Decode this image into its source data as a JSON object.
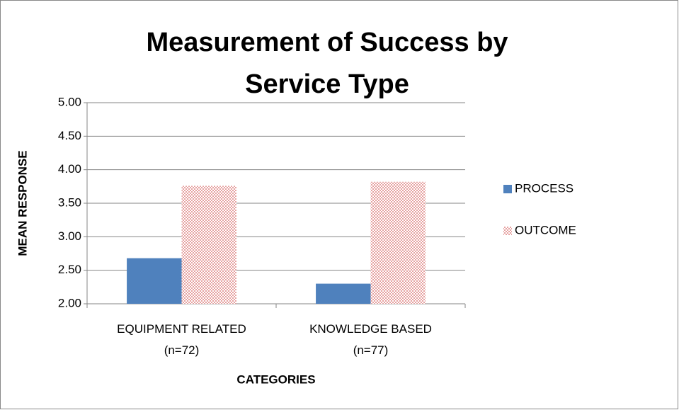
{
  "chart_data": {
    "type": "bar",
    "title": "Measurement of Success by Service Type",
    "x_label": "CATEGORIES",
    "y_label": "MEAN RESPONSE",
    "categories": [
      "EQUIPMENT RELATED (n=72)",
      "KNOWLEDGE BASED (n=77)"
    ],
    "series": [
      {
        "name": "PROCESS",
        "color": "#4f81bd",
        "values": [
          2.68,
          2.3
        ]
      },
      {
        "name": "OUTCOME",
        "color": "#e6a1a0",
        "pattern": "checker",
        "values": [
          3.76,
          3.82
        ]
      }
    ],
    "ylim": [
      2,
      5
    ],
    "yticks": [
      {
        "value": 2,
        "label": "2.00"
      },
      {
        "value": 2.5,
        "label": "2.50"
      },
      {
        "value": 3,
        "label": "3.00"
      },
      {
        "value": 3.5,
        "label": "3.50"
      },
      {
        "value": 4,
        "label": "4.00"
      },
      {
        "value": 4.5,
        "label": "4.50"
      },
      {
        "value": 5,
        "label": "5.00"
      }
    ],
    "grid": true,
    "legend": "right"
  }
}
